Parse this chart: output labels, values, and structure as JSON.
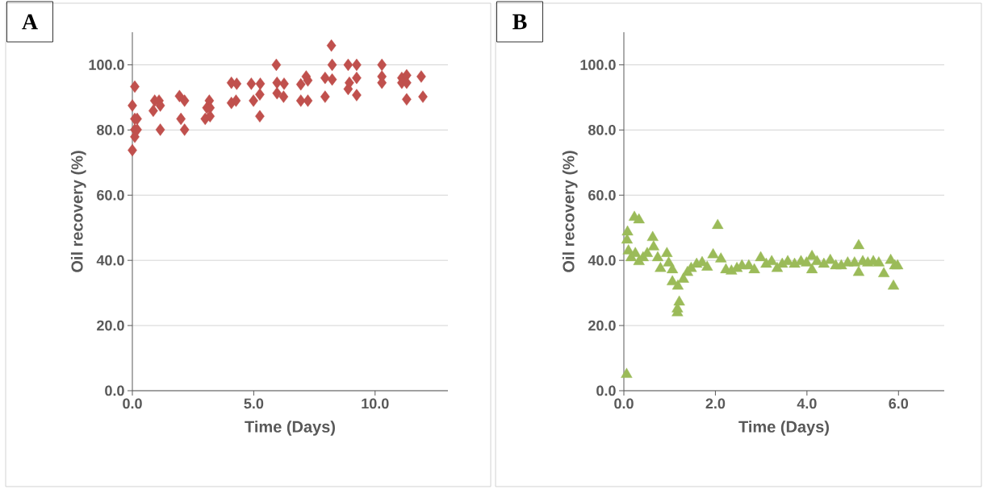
{
  "chart_data": [
    {
      "type": "scatter",
      "title": "A",
      "xlabel": "Time (Days)",
      "ylabel": "Oil recovery (%)",
      "color": "#c0504d",
      "marker": "diamond",
      "grid": "y",
      "x": [
        0,
        0.1,
        0,
        0.1,
        0.2,
        0.1,
        0.2,
        0.1,
        0.86,
        0.92,
        1.1,
        1.15,
        1.15,
        1.94,
        2.15,
        2.0,
        2.15,
        3.0,
        3.2,
        3.07,
        3.17,
        3.2,
        4.08,
        4.3,
        4.08,
        4.27,
        4.9,
        5.27,
        4.99,
        5.25,
        5.25,
        5.93,
        5.96,
        5.96,
        6.25,
        6.23,
        6.94,
        7.16,
        7.23,
        6.94,
        7.23,
        7.94,
        7.94,
        8.2,
        8.23,
        8.23,
        8.89,
        9.24,
        8.89,
        8.94,
        9.24,
        9.24,
        10.28,
        10.28,
        10.28,
        11.1,
        11.3,
        11.1,
        11.3,
        11.3,
        11.9,
        11.97
      ],
      "values": [
        73.8,
        93.3,
        87.5,
        83.4,
        83.4,
        80.1,
        80.1,
        77.9,
        85.9,
        89.0,
        89.0,
        87.5,
        80.1,
        90.4,
        89.0,
        83.4,
        80.1,
        83.4,
        84.2,
        86.8,
        89.0,
        86.8,
        94.5,
        94.2,
        88.3,
        89.0,
        94.2,
        94.2,
        89.0,
        90.9,
        84.2,
        100,
        94.5,
        91.3,
        94.2,
        90.2,
        94.0,
        96.4,
        95.2,
        89.0,
        89.0,
        96.0,
        90.2,
        105.9,
        100,
        95.5,
        100,
        100,
        92.6,
        94.5,
        96.0,
        90.7,
        100,
        96.4,
        94.5,
        96.0,
        96.8,
        94.5,
        94.5,
        89.4,
        96.4,
        90.2
      ],
      "xlim": [
        0,
        13
      ],
      "ylim": [
        0,
        110
      ],
      "xticks": [
        {
          "value": 0,
          "label": "0.0"
        },
        {
          "value": 5,
          "label": "5.0"
        },
        {
          "value": 10,
          "label": "10.0"
        }
      ],
      "yticks": [
        {
          "value": 0,
          "label": "0.0"
        },
        {
          "value": 20,
          "label": "20.0"
        },
        {
          "value": 40,
          "label": "40.0"
        },
        {
          "value": 60,
          "label": "60.0"
        },
        {
          "value": 80,
          "label": "80.0"
        },
        {
          "value": 100,
          "label": "100.0"
        }
      ]
    },
    {
      "type": "scatter",
      "title": "B",
      "xlabel": "Time (Days)",
      "ylabel": "Oil recovery (%)",
      "color": "#9bbb59",
      "marker": "triangle",
      "grid": "y",
      "x": [
        0.06,
        0.08,
        0.23,
        0.33,
        0.07,
        0.1,
        0.16,
        0.25,
        0.33,
        0.42,
        0.51,
        0.63,
        0.65,
        0.74,
        0.8,
        0.94,
        0.98,
        1.06,
        1.06,
        1.18,
        1.21,
        1.17,
        1.17,
        1.3,
        1.39,
        1.47,
        1.59,
        1.71,
        1.82,
        1.95,
        2.05,
        2.12,
        2.23,
        2.35,
        2.47,
        2.58,
        2.73,
        2.85,
        2.99,
        3.11,
        3.23,
        3.35,
        3.46,
        3.58,
        3.73,
        3.87,
        3.99,
        4.11,
        4.11,
        4.22,
        4.37,
        4.51,
        4.63,
        4.75,
        4.89,
        5.04,
        5.13,
        5.13,
        5.22,
        5.33,
        5.45,
        5.57,
        5.68,
        5.83,
        5.89,
        5.92,
        5.98
      ],
      "values": [
        5.0,
        48.7,
        53.2,
        52.4,
        46.2,
        42.9,
        40.8,
        42.1,
        39.6,
        40.8,
        42.1,
        47.0,
        44.1,
        40.8,
        37.5,
        42.1,
        39.2,
        37.1,
        33.4,
        32.1,
        27.2,
        23.9,
        25.1,
        34.2,
        36.3,
        37.5,
        38.8,
        39.3,
        37.9,
        41.7,
        50.7,
        40.4,
        37.1,
        36.7,
        37.5,
        38.3,
        38.3,
        37.1,
        40.8,
        38.8,
        39.6,
        37.5,
        38.8,
        39.6,
        38.8,
        39.6,
        39.2,
        41.2,
        37.1,
        39.6,
        38.8,
        40.0,
        38.3,
        38.3,
        39.2,
        39.2,
        44.5,
        36.3,
        39.6,
        39.2,
        39.6,
        39.2,
        35.9,
        40.0,
        32.1,
        38.3,
        38.3
      ],
      "xlim": [
        0,
        7
      ],
      "ylim": [
        0,
        110
      ],
      "xticks": [
        {
          "value": 0,
          "label": "0.0"
        },
        {
          "value": 2,
          "label": "2.0"
        },
        {
          "value": 4,
          "label": "4.0"
        },
        {
          "value": 6,
          "label": "6.0"
        }
      ],
      "yticks": [
        {
          "value": 0,
          "label": "0.0"
        },
        {
          "value": 20,
          "label": "20.0"
        },
        {
          "value": 40,
          "label": "40.0"
        },
        {
          "value": 60,
          "label": "60.0"
        },
        {
          "value": 80,
          "label": "80.0"
        },
        {
          "value": 100,
          "label": "100.0"
        }
      ]
    }
  ]
}
